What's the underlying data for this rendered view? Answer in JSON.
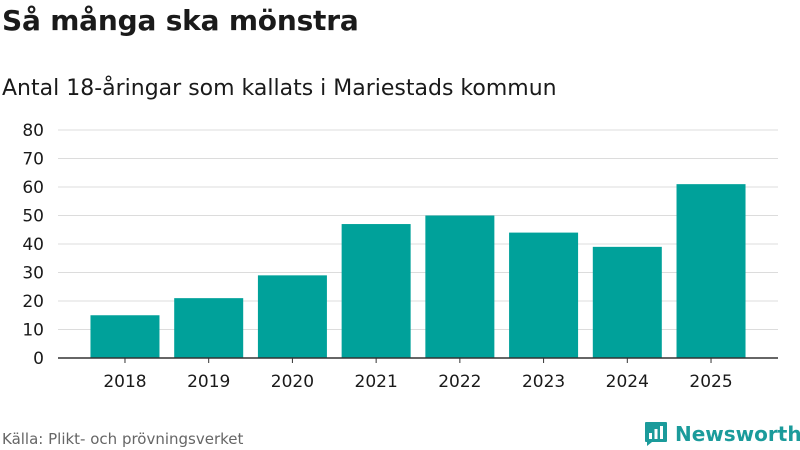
{
  "header": {
    "title": "Så många ska mönstra",
    "subtitle": "Antal 18-åringar som kallats i Mariestads kommun"
  },
  "chart_data": {
    "type": "bar",
    "title": "Så många ska mönstra",
    "subtitle": "Antal 18-åringar som kallats i Mariestads kommun",
    "xlabel": "",
    "ylabel": "",
    "categories": [
      "2018",
      "2019",
      "2020",
      "2021",
      "2022",
      "2023",
      "2024",
      "2025"
    ],
    "values": [
      15,
      21,
      29,
      47,
      50,
      44,
      39,
      61
    ],
    "ylim": [
      0,
      80
    ],
    "yticks": [
      "0",
      "10",
      "20",
      "30",
      "40",
      "50",
      "60",
      "70",
      "80"
    ],
    "grid": true,
    "legend": "none",
    "bar_color": "#00a19a"
  },
  "footer": {
    "source": "Källa: Plikt- och prövningsverket",
    "brand": "Newsworthy",
    "brand_icon": "newsworthy-logo-icon",
    "brand_color": "#1b9b9b"
  }
}
